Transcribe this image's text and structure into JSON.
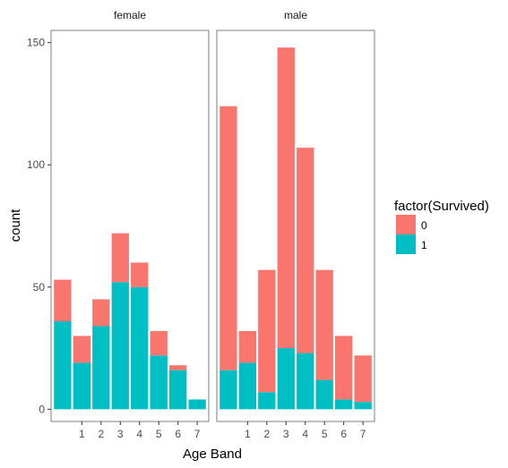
{
  "chart_data": {
    "type": "bar",
    "stacked": true,
    "facets": [
      {
        "label": "female",
        "bars": [
          {
            "x": 0,
            "survived_0": 17,
            "survived_1": 36
          },
          {
            "x": 1,
            "survived_0": 11,
            "survived_1": 19
          },
          {
            "x": 2,
            "survived_0": 11,
            "survived_1": 34
          },
          {
            "x": 3,
            "survived_0": 20,
            "survived_1": 52
          },
          {
            "x": 4,
            "survived_0": 10,
            "survived_1": 50
          },
          {
            "x": 5,
            "survived_0": 10,
            "survived_1": 22
          },
          {
            "x": 6,
            "survived_0": 2,
            "survived_1": 16
          },
          {
            "x": 7,
            "survived_0": 0,
            "survived_1": 4
          }
        ]
      },
      {
        "label": "male",
        "bars": [
          {
            "x": 0,
            "survived_0": 108,
            "survived_1": 16
          },
          {
            "x": 1,
            "survived_0": 13,
            "survived_1": 19
          },
          {
            "x": 2,
            "survived_0": 50,
            "survived_1": 7
          },
          {
            "x": 3,
            "survived_0": 123,
            "survived_1": 25
          },
          {
            "x": 4,
            "survived_0": 84,
            "survived_1": 23
          },
          {
            "x": 5,
            "survived_0": 45,
            "survived_1": 12
          },
          {
            "x": 6,
            "survived_0": 26,
            "survived_1": 4
          },
          {
            "x": 7,
            "survived_0": 19,
            "survived_1": 3
          }
        ]
      }
    ],
    "x_ticks": [
      "1",
      "2",
      "3",
      "4",
      "5",
      "6",
      "7"
    ],
    "y_ticks": [
      0,
      50,
      100,
      150
    ],
    "ylim": [
      -5,
      155
    ],
    "xlabel": "Age Band",
    "ylabel": "count",
    "legend": {
      "title": "factor(Survived)",
      "placement": "right",
      "items": [
        {
          "label": "0",
          "color": "#F8766D"
        },
        {
          "label": "1",
          "color": "#00BFC4"
        }
      ]
    },
    "grid": false
  }
}
